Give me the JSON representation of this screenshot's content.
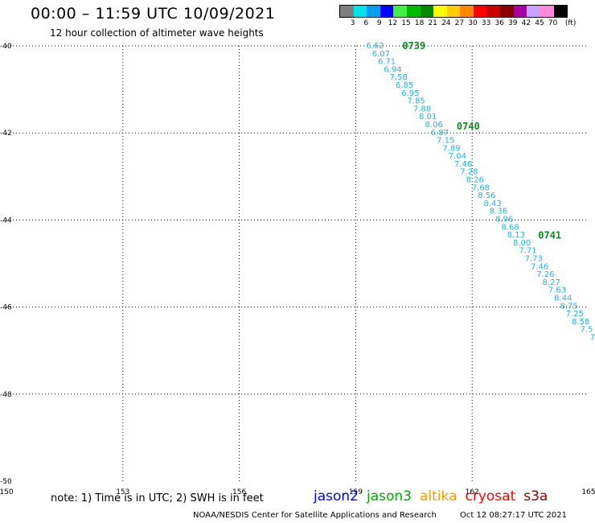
{
  "header": {
    "title": "00:00 – 11:59 UTC 10/09/2021",
    "subtitle": "12 hour collection of altimeter wave heights"
  },
  "legend": {
    "unit": "(ft)",
    "colors": [
      "#7f7f7f",
      "#00e5e5",
      "#00a0f0",
      "#0000ff",
      "#44ee44",
      "#00bb00",
      "#008800",
      "#ffff00",
      "#ffcc00",
      "#ff8800",
      "#ff0000",
      "#cc0000",
      "#880000",
      "#aa00aa",
      "#c8a0ff",
      "#ff88dd",
      "#000000"
    ],
    "labels": [
      "3",
      "6",
      "9",
      "12",
      "15",
      "18",
      "21",
      "24",
      "27",
      "30",
      "33",
      "36",
      "39",
      "42",
      "45",
      "70"
    ]
  },
  "map": {
    "x_ticks": [
      "150",
      "153",
      "156",
      "159",
      "162",
      "165"
    ],
    "y_ticks": [
      "-40",
      "-42",
      "-44",
      "-46",
      "-48",
      "-50"
    ],
    "x_range": [
      150,
      165
    ],
    "y_range": [
      -40,
      -50
    ]
  },
  "pass_labels": [
    {
      "text": "0739",
      "lon": 160.2,
      "lat": -40.0
    },
    {
      "text": "0740",
      "lon": 161.6,
      "lat": -41.85
    },
    {
      "text": "0741",
      "lon": 163.7,
      "lat": -44.35
    }
  ],
  "track": {
    "start": [
      159.5,
      -40.0
    ],
    "end": [
      165.1,
      -46.7
    ],
    "labels": [
      "6.62",
      "6.07",
      "6.71",
      "6.94",
      "7.58",
      "6.85",
      "6.95",
      "7.85",
      "7.88",
      "8.01",
      "8.06",
      "6.87",
      "7.15",
      "7.89",
      "7.04",
      "7.46",
      "7.28",
      "8.26",
      "7.68",
      "8.56",
      "8.43",
      "8.36",
      "8.96",
      "8.68",
      "8.13",
      "8.00",
      "7.71",
      "7.73",
      "7.46",
      "7.26",
      "8.27",
      "7.63",
      "8.44",
      "8.75",
      "7.25",
      "8.58",
      "7.5",
      "7"
    ]
  },
  "footer": {
    "note": "note: 1) Time is in UTC; 2) SWH is in feet",
    "missions": [
      {
        "name": "jason2",
        "color": "#0000ff"
      },
      {
        "name": "jason3",
        "color": "#00aa00"
      },
      {
        "name": "altika",
        "color": "#ff9900"
      },
      {
        "name": "cryosat",
        "color": "#ff0000"
      },
      {
        "name": "s3a",
        "color": "#880000"
      }
    ],
    "credit": "NOAA/NESDIS Center for Satellite Applications and Research",
    "timestamp": "Oct 12 08:27:17 UTC 2021"
  }
}
